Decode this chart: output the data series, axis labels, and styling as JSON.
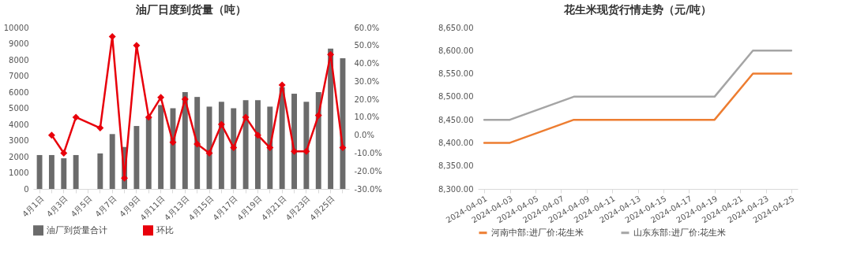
{
  "chart_data": [
    {
      "type": "bar",
      "title": "油厂日度到货量（吨）",
      "categories": [
        "4月1日",
        null,
        "4月3日",
        null,
        "4月5日",
        null,
        "4月7日",
        null,
        "4月9日",
        null,
        "4月11日",
        null,
        "4月13日",
        null,
        "4月15日",
        null,
        "4月17日",
        null,
        "4月19日",
        null,
        "4月21日",
        null,
        "4月23日",
        null,
        "4月25日",
        null
      ],
      "ylim": [
        0,
        10000
      ],
      "yticks": [
        0,
        1000,
        2000,
        3000,
        4000,
        5000,
        6000,
        7000,
        8000,
        9000,
        10000
      ],
      "y2lim": [
        -30,
        60
      ],
      "y2ticks": [
        {
          "value": -30,
          "label": "-30.0%"
        },
        {
          "value": -20,
          "label": "-20.0%"
        },
        {
          "value": -10,
          "label": "-10.0%"
        },
        {
          "value": 0,
          "label": "0.0%"
        },
        {
          "value": 10,
          "label": "10.0%"
        },
        {
          "value": 20,
          "label": "20.0%"
        },
        {
          "value": 30,
          "label": "30.0%"
        },
        {
          "value": 40,
          "label": "40.0%"
        },
        {
          "value": 50,
          "label": "50.0%"
        },
        {
          "value": 60,
          "label": "60.0%"
        }
      ],
      "legend": "bottom",
      "marker": "diamond",
      "series": [
        {
          "name": "油厂到货量合计",
          "color": "#6b6b6b",
          "values": [
            2100,
            2100,
            1900,
            2100,
            null,
            2200,
            3400,
            2600,
            3900,
            4400,
            5200,
            5000,
            6000,
            5700,
            5100,
            5400,
            5000,
            5500,
            5500,
            5100,
            6300,
            5900,
            5400,
            6000,
            8700,
            8100
          ]
        },
        {
          "name": "环比",
          "type": "line",
          "axis": "y2",
          "color": "#e8000b",
          "values": [
            null,
            0,
            -10,
            10,
            null,
            4,
            55,
            -24,
            50,
            10,
            21,
            -4,
            20,
            -5,
            -10,
            6,
            -7,
            10,
            0,
            -7,
            28,
            -9,
            -9,
            11,
            45,
            -7
          ]
        }
      ]
    },
    {
      "type": "line",
      "title": "花生米现货行情走势（元/吨）",
      "x": [
        "2024-04-01",
        "2024-04-03",
        "2024-04-08",
        "2024-04-19",
        "2024-04-22",
        "2024-04-25"
      ],
      "xlim": [
        "2024-03-31T12:00",
        "2024-04-25T12:00"
      ],
      "xticks": [
        "2024-04-01",
        "2024-04-03",
        "2024-04-05",
        "2024-04-07",
        "2024-04-09",
        "2024-04-11",
        "2024-04-13",
        "2024-04-15",
        "2024-04-17",
        "2024-04-19",
        "2024-04-21",
        "2024-04-23",
        "2024-04-25"
      ],
      "ylim": [
        8300,
        8650
      ],
      "yticks": [
        {
          "value": 8300,
          "label": "8,300.00"
        },
        {
          "value": 8350,
          "label": "8,350.00"
        },
        {
          "value": 8400,
          "label": "8,400.00"
        },
        {
          "value": 8450,
          "label": "8,450.00"
        },
        {
          "value": 8500,
          "label": "8,500.00"
        },
        {
          "value": 8550,
          "label": "8,550.00"
        },
        {
          "value": 8600,
          "label": "8,600.00"
        },
        {
          "value": 8650,
          "label": "8,650.00"
        }
      ],
      "legend": "bottom",
      "series": [
        {
          "name": "河南中部:进厂价:花生米",
          "color": "#ed7d31",
          "values": [
            8400,
            8400,
            8450,
            8450,
            8550,
            8550
          ]
        },
        {
          "name": "山东东部:进厂价:花生米",
          "color": "#a5a5a5",
          "values": [
            8450,
            8450,
            8500,
            8500,
            8600,
            8600
          ]
        }
      ]
    }
  ]
}
